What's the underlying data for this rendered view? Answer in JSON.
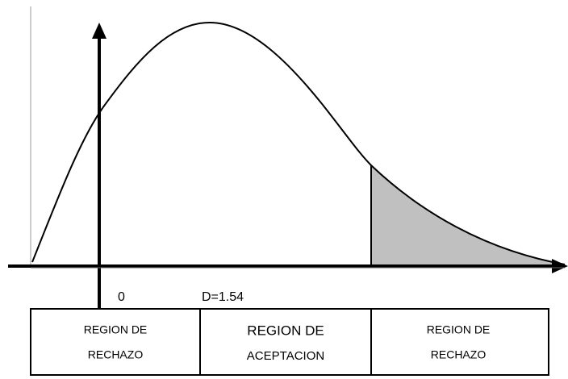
{
  "axis_labels": [
    "0",
    "D=1.54"
  ],
  "regions": [
    {
      "lines": [
        "REGION DE",
        "RECHAZO"
      ]
    },
    {
      "lines": [
        "REGION DE",
        "ACEPTACION"
      ]
    },
    {
      "lines": [
        "REGION DE",
        "RECHAZO"
      ]
    }
  ]
}
